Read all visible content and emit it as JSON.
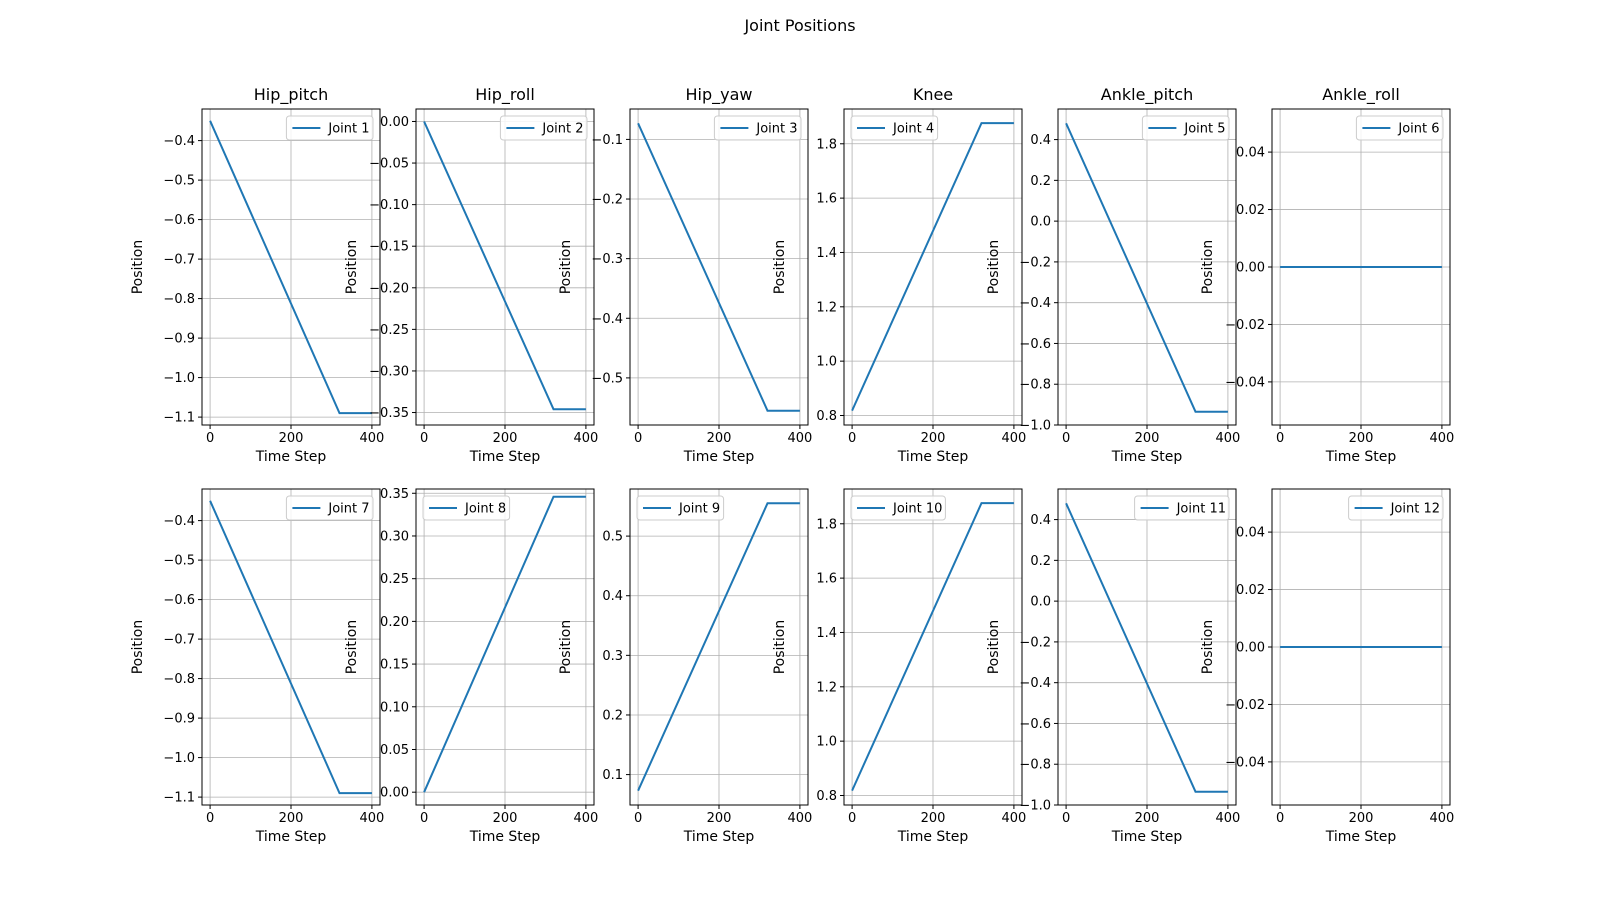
{
  "title": "Joint Positions",
  "colors": {
    "line": "#1f77b4",
    "grid": "#b0b0b0",
    "axis": "#000000",
    "legend_border": "#cccccc"
  },
  "chart_data": [
    {
      "type": "line",
      "title": "Hip_pitch",
      "xlabel": "Time Step",
      "ylabel": "Position",
      "xlim": [
        -20,
        420
      ],
      "ylim": [
        -1.12,
        -0.32
      ],
      "xticks": [
        0,
        200,
        400
      ],
      "xtick_labels": [
        "0",
        "200",
        "400"
      ],
      "yticks": [
        -1.1,
        -1.0,
        -0.9,
        -0.8,
        -0.7,
        -0.6,
        -0.5,
        -0.4
      ],
      "ytick_labels": [
        "−1.1",
        "−1.0",
        "−0.9",
        "−0.8",
        "−0.7",
        "−0.6",
        "−0.5",
        "−0.4"
      ],
      "grid": true,
      "legend_position": "upper right",
      "series": [
        {
          "name": "Joint 1",
          "x": [
            0,
            320,
            400
          ],
          "y": [
            -0.35,
            -1.09,
            -1.09
          ]
        }
      ]
    },
    {
      "type": "line",
      "title": "Hip_roll",
      "xlabel": "Time Step",
      "ylabel": "Position",
      "xlim": [
        -20,
        420
      ],
      "ylim": [
        -0.365,
        0.015
      ],
      "xticks": [
        0,
        200,
        400
      ],
      "xtick_labels": [
        "0",
        "200",
        "400"
      ],
      "yticks": [
        -0.35,
        -0.3,
        -0.25,
        -0.2,
        -0.15,
        -0.1,
        -0.05,
        0.0
      ],
      "ytick_labels": [
        "−0.35",
        "−0.30",
        "−0.25",
        "−0.20",
        "−0.15",
        "−0.10",
        "−0.05",
        "0.00"
      ],
      "grid": true,
      "legend_position": "upper right",
      "series": [
        {
          "name": "Joint 2",
          "x": [
            0,
            320,
            400
          ],
          "y": [
            0.0,
            -0.346,
            -0.346
          ]
        }
      ]
    },
    {
      "type": "line",
      "title": "Hip_yaw",
      "xlabel": "Time Step",
      "ylabel": "Position",
      "xlim": [
        -20,
        420
      ],
      "ylim": [
        -0.579,
        -0.049
      ],
      "xticks": [
        0,
        200,
        400
      ],
      "xtick_labels": [
        "0",
        "200",
        "400"
      ],
      "yticks": [
        -0.5,
        -0.4,
        -0.3,
        -0.2,
        -0.1
      ],
      "ytick_labels": [
        "−0.5",
        "−0.4",
        "−0.3",
        "−0.2",
        "−0.1"
      ],
      "grid": true,
      "legend_position": "upper right",
      "series": [
        {
          "name": "Joint 3",
          "x": [
            0,
            320,
            400
          ],
          "y": [
            -0.073,
            -0.555,
            -0.555
          ]
        }
      ]
    },
    {
      "type": "line",
      "title": "Knee",
      "xlabel": "Time Step",
      "ylabel": "Position",
      "xlim": [
        -20,
        420
      ],
      "ylim": [
        0.765,
        1.928
      ],
      "xticks": [
        0,
        200,
        400
      ],
      "xtick_labels": [
        "0",
        "200",
        "400"
      ],
      "yticks": [
        0.8,
        1.0,
        1.2,
        1.4,
        1.6,
        1.8
      ],
      "ytick_labels": [
        "0.8",
        "1.0",
        "1.2",
        "1.4",
        "1.6",
        "1.8"
      ],
      "grid": true,
      "legend_position": "upper left",
      "series": [
        {
          "name": "Joint 4",
          "x": [
            0,
            320,
            400
          ],
          "y": [
            0.818,
            1.876,
            1.876
          ]
        }
      ]
    },
    {
      "type": "line",
      "title": "Ankle_pitch",
      "xlabel": "Time Step",
      "ylabel": "Position",
      "xlim": [
        -20,
        420
      ],
      "ylim": [
        -1.0,
        0.55
      ],
      "xticks": [
        0,
        200,
        400
      ],
      "xtick_labels": [
        "0",
        "200",
        "400"
      ],
      "yticks": [
        -1.0,
        -0.8,
        -0.6,
        -0.4,
        -0.2,
        0.0,
        0.2,
        0.4
      ],
      "ytick_labels": [
        "−1.0",
        "−0.8",
        "−0.6",
        "−0.4",
        "−0.2",
        "0.0",
        "0.2",
        "0.4"
      ],
      "grid": true,
      "legend_position": "upper right",
      "series": [
        {
          "name": "Joint 5",
          "x": [
            0,
            320,
            400
          ],
          "y": [
            0.48,
            -0.935,
            -0.935
          ]
        }
      ]
    },
    {
      "type": "line",
      "title": "Ankle_roll",
      "xlabel": "Time Step",
      "ylabel": "Position",
      "xlim": [
        -20,
        420
      ],
      "ylim": [
        -0.055,
        0.055
      ],
      "xticks": [
        0,
        200,
        400
      ],
      "xtick_labels": [
        "0",
        "200",
        "400"
      ],
      "yticks": [
        -0.04,
        -0.02,
        0.0,
        0.02,
        0.04
      ],
      "ytick_labels": [
        "−0.04",
        "−0.02",
        "0.00",
        "0.02",
        "0.04"
      ],
      "grid": true,
      "legend_position": "upper right",
      "series": [
        {
          "name": "Joint 6",
          "x": [
            0,
            400
          ],
          "y": [
            0.0,
            0.0
          ]
        }
      ]
    },
    {
      "type": "line",
      "title": "",
      "xlabel": "Time Step",
      "ylabel": "Position",
      "xlim": [
        -20,
        420
      ],
      "ylim": [
        -1.12,
        -0.32
      ],
      "xticks": [
        0,
        200,
        400
      ],
      "xtick_labels": [
        "0",
        "200",
        "400"
      ],
      "yticks": [
        -1.1,
        -1.0,
        -0.9,
        -0.8,
        -0.7,
        -0.6,
        -0.5,
        -0.4
      ],
      "ytick_labels": [
        "−1.1",
        "−1.0",
        "−0.9",
        "−0.8",
        "−0.7",
        "−0.6",
        "−0.5",
        "−0.4"
      ],
      "grid": true,
      "legend_position": "upper right",
      "series": [
        {
          "name": "Joint 7",
          "x": [
            0,
            320,
            400
          ],
          "y": [
            -0.35,
            -1.09,
            -1.09
          ]
        }
      ]
    },
    {
      "type": "line",
      "title": "",
      "xlabel": "Time Step",
      "ylabel": "Position",
      "xlim": [
        -20,
        420
      ],
      "ylim": [
        -0.015,
        0.355
      ],
      "xticks": [
        0,
        200,
        400
      ],
      "xtick_labels": [
        "0",
        "200",
        "400"
      ],
      "yticks": [
        0.0,
        0.05,
        0.1,
        0.15,
        0.2,
        0.25,
        0.3,
        0.35
      ],
      "ytick_labels": [
        "0.00",
        "0.05",
        "0.10",
        "0.15",
        "0.20",
        "0.25",
        "0.30",
        "0.35"
      ],
      "grid": true,
      "legend_position": "upper left",
      "series": [
        {
          "name": "Joint 8",
          "x": [
            0,
            320,
            400
          ],
          "y": [
            0.0,
            0.346,
            0.346
          ]
        }
      ]
    },
    {
      "type": "line",
      "title": "",
      "xlabel": "Time Step",
      "ylabel": "Position",
      "xlim": [
        -20,
        420
      ],
      "ylim": [
        0.049,
        0.579
      ],
      "xticks": [
        0,
        200,
        400
      ],
      "xtick_labels": [
        "0",
        "200",
        "400"
      ],
      "yticks": [
        0.1,
        0.2,
        0.3,
        0.4,
        0.5
      ],
      "ytick_labels": [
        "0.1",
        "0.2",
        "0.3",
        "0.4",
        "0.5"
      ],
      "grid": true,
      "legend_position": "upper left",
      "series": [
        {
          "name": "Joint 9",
          "x": [
            0,
            320,
            400
          ],
          "y": [
            0.073,
            0.555,
            0.555
          ]
        }
      ]
    },
    {
      "type": "line",
      "title": "",
      "xlabel": "Time Step",
      "ylabel": "Position",
      "xlim": [
        -20,
        420
      ],
      "ylim": [
        0.765,
        1.928
      ],
      "xticks": [
        0,
        200,
        400
      ],
      "xtick_labels": [
        "0",
        "200",
        "400"
      ],
      "yticks": [
        0.8,
        1.0,
        1.2,
        1.4,
        1.6,
        1.8
      ],
      "ytick_labels": [
        "0.8",
        "1.0",
        "1.2",
        "1.4",
        "1.6",
        "1.8"
      ],
      "grid": true,
      "legend_position": "upper left",
      "series": [
        {
          "name": "Joint 10",
          "x": [
            0,
            320,
            400
          ],
          "y": [
            0.818,
            1.876,
            1.876
          ]
        }
      ]
    },
    {
      "type": "line",
      "title": "",
      "xlabel": "Time Step",
      "ylabel": "Position",
      "xlim": [
        -20,
        420
      ],
      "ylim": [
        -1.0,
        0.55
      ],
      "xticks": [
        0,
        200,
        400
      ],
      "xtick_labels": [
        "0",
        "200",
        "400"
      ],
      "yticks": [
        -1.0,
        -0.8,
        -0.6,
        -0.4,
        -0.2,
        0.0,
        0.2,
        0.4
      ],
      "ytick_labels": [
        "−1.0",
        "−0.8",
        "−0.6",
        "−0.4",
        "−0.2",
        "0.0",
        "0.2",
        "0.4"
      ],
      "grid": true,
      "legend_position": "upper right",
      "series": [
        {
          "name": "Joint 11",
          "x": [
            0,
            320,
            400
          ],
          "y": [
            0.48,
            -0.935,
            -0.935
          ]
        }
      ]
    },
    {
      "type": "line",
      "title": "",
      "xlabel": "Time Step",
      "ylabel": "Position",
      "xlim": [
        -20,
        420
      ],
      "ylim": [
        -0.055,
        0.055
      ],
      "xticks": [
        0,
        200,
        400
      ],
      "xtick_labels": [
        "0",
        "200",
        "400"
      ],
      "yticks": [
        -0.04,
        -0.02,
        0.0,
        0.02,
        0.04
      ],
      "ytick_labels": [
        "−0.04",
        "−0.02",
        "0.00",
        "0.02",
        "0.04"
      ],
      "grid": true,
      "legend_position": "upper right",
      "series": [
        {
          "name": "Joint 12",
          "x": [
            0,
            400
          ],
          "y": [
            0.0,
            0.0
          ]
        }
      ]
    }
  ]
}
